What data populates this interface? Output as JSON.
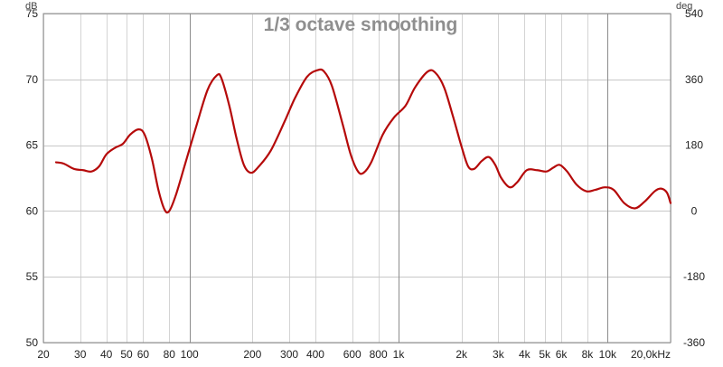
{
  "chart_data": {
    "type": "line",
    "title": "1/3 octave smoothing",
    "y_unit_left": "dB",
    "y_unit_right": "deg",
    "x_unit_suffix": "kHz",
    "x_scale": "log",
    "xlim": [
      20,
      20000
    ],
    "ylim": [
      50,
      75
    ],
    "y2lim": [
      -360,
      540
    ],
    "grid": true,
    "x_ticks": [
      {
        "value": 20,
        "label": "20"
      },
      {
        "value": 30,
        "label": "30"
      },
      {
        "value": 40,
        "label": "40"
      },
      {
        "value": 50,
        "label": "50"
      },
      {
        "value": 60,
        "label": "60"
      },
      {
        "value": 80,
        "label": "80"
      },
      {
        "value": 100,
        "label": "100"
      },
      {
        "value": 200,
        "label": "200"
      },
      {
        "value": 300,
        "label": "300"
      },
      {
        "value": 400,
        "label": "400"
      },
      {
        "value": 600,
        "label": "600"
      },
      {
        "value": 800,
        "label": "800"
      },
      {
        "value": 1000,
        "label": "1k"
      },
      {
        "value": 2000,
        "label": "2k"
      },
      {
        "value": 3000,
        "label": "3k"
      },
      {
        "value": 4000,
        "label": "4k"
      },
      {
        "value": 5000,
        "label": "5k"
      },
      {
        "value": 6000,
        "label": "6k"
      },
      {
        "value": 8000,
        "label": "8k"
      },
      {
        "value": 10000,
        "label": "10k"
      },
      {
        "value": 20000,
        "label": "20,0kHz"
      }
    ],
    "y_ticks_left": [
      {
        "value": 50,
        "label": "50"
      },
      {
        "value": 55,
        "label": "55"
      },
      {
        "value": 60,
        "label": "60"
      },
      {
        "value": 65,
        "label": "65"
      },
      {
        "value": 70,
        "label": "70"
      },
      {
        "value": 75,
        "label": "75"
      }
    ],
    "y_ticks_right": [
      {
        "value": -360,
        "label": "-360"
      },
      {
        "value": -180,
        "label": "-180"
      },
      {
        "value": 0,
        "label": "0"
      },
      {
        "value": 180,
        "label": "180"
      },
      {
        "value": 360,
        "label": "360"
      },
      {
        "value": 540,
        "label": "540"
      }
    ],
    "series": [
      {
        "color": "#b50a0a",
        "points": [
          [
            23,
            63.7
          ],
          [
            25,
            63.6
          ],
          [
            28,
            63.2
          ],
          [
            31,
            63.1
          ],
          [
            34,
            63.0
          ],
          [
            37,
            63.4
          ],
          [
            40,
            64.3
          ],
          [
            44,
            64.8
          ],
          [
            48,
            65.1
          ],
          [
            52,
            65.8
          ],
          [
            57,
            66.2
          ],
          [
            61,
            65.8
          ],
          [
            66,
            64.0
          ],
          [
            71,
            61.6
          ],
          [
            76,
            60.1
          ],
          [
            80,
            60.0
          ],
          [
            86,
            61.2
          ],
          [
            95,
            63.5
          ],
          [
            108,
            66.5
          ],
          [
            122,
            69.2
          ],
          [
            135,
            70.3
          ],
          [
            142,
            70.1
          ],
          [
            155,
            68.0
          ],
          [
            168,
            65.5
          ],
          [
            182,
            63.5
          ],
          [
            197,
            62.9
          ],
          [
            215,
            63.4
          ],
          [
            245,
            64.6
          ],
          [
            285,
            66.8
          ],
          [
            320,
            68.6
          ],
          [
            365,
            70.2
          ],
          [
            410,
            70.7
          ],
          [
            440,
            70.6
          ],
          [
            480,
            69.5
          ],
          [
            540,
            66.6
          ],
          [
            590,
            64.3
          ],
          [
            640,
            63.0
          ],
          [
            680,
            62.9
          ],
          [
            740,
            63.7
          ],
          [
            840,
            65.8
          ],
          [
            950,
            67.1
          ],
          [
            1080,
            68.0
          ],
          [
            1200,
            69.4
          ],
          [
            1380,
            70.6
          ],
          [
            1500,
            70.5
          ],
          [
            1650,
            69.4
          ],
          [
            1820,
            67.2
          ],
          [
            2000,
            64.9
          ],
          [
            2150,
            63.4
          ],
          [
            2300,
            63.2
          ],
          [
            2500,
            63.8
          ],
          [
            2700,
            64.1
          ],
          [
            2900,
            63.5
          ],
          [
            3100,
            62.5
          ],
          [
            3400,
            61.8
          ],
          [
            3700,
            62.2
          ],
          [
            4100,
            63.1
          ],
          [
            4600,
            63.1
          ],
          [
            5100,
            63.0
          ],
          [
            5500,
            63.3
          ],
          [
            5900,
            63.5
          ],
          [
            6400,
            63.0
          ],
          [
            7100,
            62.0
          ],
          [
            7900,
            61.5
          ],
          [
            8700,
            61.6
          ],
          [
            9700,
            61.8
          ],
          [
            10700,
            61.6
          ],
          [
            12000,
            60.6
          ],
          [
            13500,
            60.2
          ],
          [
            15000,
            60.7
          ],
          [
            16800,
            61.5
          ],
          [
            18000,
            61.7
          ],
          [
            19200,
            61.4
          ],
          [
            20000,
            60.6
          ]
        ]
      }
    ]
  }
}
